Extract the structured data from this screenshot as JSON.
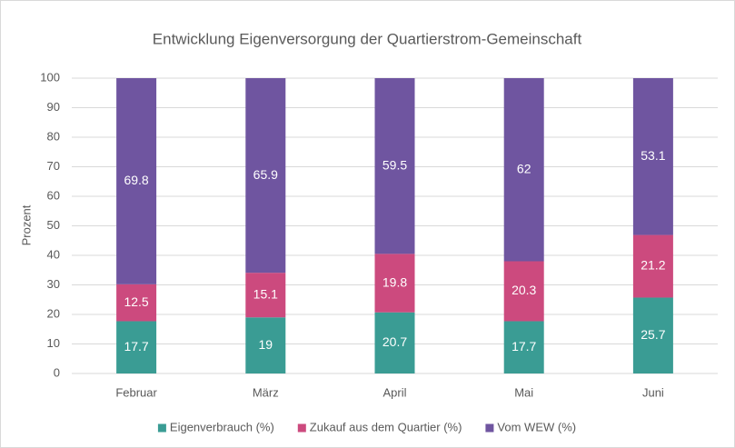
{
  "chart_data": {
    "type": "bar",
    "stacked": true,
    "title": "Entwicklung Eigenversorgung der Quartierstrom-Gemeinschaft",
    "y_label": "Prozent",
    "categories": [
      "Februar",
      "März",
      "April",
      "Mai",
      "Juni"
    ],
    "series": [
      {
        "name": "Eigenverbrauch (%)",
        "color": "#3a9c94",
        "values": [
          17.7,
          19,
          20.7,
          17.7,
          25.7
        ]
      },
      {
        "name": "Zukauf aus dem Quartier (%)",
        "color": "#cc4a7e",
        "values": [
          12.5,
          15.1,
          19.8,
          20.3,
          21.2
        ]
      },
      {
        "name": "Vom WEW (%)",
        "color": "#6f55a0",
        "values": [
          69.8,
          65.9,
          59.5,
          62,
          53.1
        ]
      }
    ],
    "ylim": [
      0,
      100
    ],
    "yticks": [
      0,
      10,
      20,
      30,
      40,
      50,
      60,
      70,
      80,
      90,
      100
    ],
    "grid": true,
    "legend": "bottom"
  }
}
